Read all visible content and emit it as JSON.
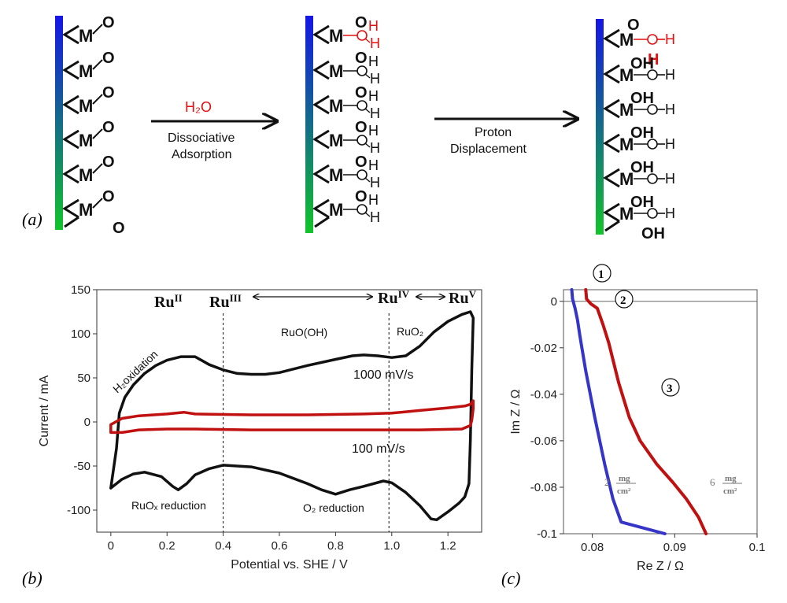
{
  "figure": {
    "panel_a_label": "(a)",
    "panel_b_label": "(b)",
    "panel_c_label": "(c)"
  },
  "panel_a": {
    "metal_label": "M",
    "oxygen_label": "O",
    "hydrogen_label": "H",
    "oh_label": "OH",
    "arrow1_reagent": "H₂O",
    "arrow1_line1": "Dissociative",
    "arrow1_line2": "Adsorption",
    "arrow2_line1": "Proton",
    "arrow2_line2": "Displacement",
    "colors": {
      "surface_top": "#1010e0",
      "surface_bottom": "#10c020",
      "highlight": "#e01010",
      "bond": "#111111"
    }
  },
  "chart_data": [
    {
      "id": "cv",
      "type": "line",
      "title": "",
      "xlabel": "Potential vs. SHE / V",
      "ylabel": "Current / mA",
      "xlim": [
        -0.05,
        1.32
      ],
      "ylim": [
        -125,
        150
      ],
      "xticks": [
        0,
        0.2,
        0.4,
        0.6,
        0.8,
        1.0,
        1.2
      ],
      "xtick_labels": [
        "0",
        "0.2",
        "0.4",
        "0.6",
        "0.8",
        "1.0",
        "1.2"
      ],
      "yticks": [
        -100,
        -50,
        0,
        50,
        100,
        150
      ],
      "ytick_labels": [
        "-100",
        "-50",
        "0",
        "50",
        "100",
        "150"
      ],
      "series": [
        {
          "name": "1000 mV/s",
          "color": "#111111",
          "points": [
            [
              0.0,
              -75
            ],
            [
              0.02,
              -30
            ],
            [
              0.03,
              10
            ],
            [
              0.05,
              28
            ],
            [
              0.08,
              42
            ],
            [
              0.12,
              55
            ],
            [
              0.16,
              64
            ],
            [
              0.2,
              70
            ],
            [
              0.25,
              74
            ],
            [
              0.3,
              74
            ],
            [
              0.35,
              65
            ],
            [
              0.4,
              59
            ],
            [
              0.45,
              55
            ],
            [
              0.5,
              54
            ],
            [
              0.55,
              54
            ],
            [
              0.6,
              56
            ],
            [
              0.7,
              64
            ],
            [
              0.8,
              71
            ],
            [
              0.86,
              75
            ],
            [
              0.9,
              76
            ],
            [
              0.95,
              75
            ],
            [
              1.0,
              73
            ],
            [
              1.05,
              75
            ],
            [
              1.1,
              86
            ],
            [
              1.15,
              102
            ],
            [
              1.2,
              114
            ],
            [
              1.25,
              122
            ],
            [
              1.28,
              125
            ],
            [
              1.29,
              118
            ],
            [
              1.285,
              60
            ],
            [
              1.28,
              -20
            ],
            [
              1.275,
              -70
            ],
            [
              1.26,
              -85
            ],
            [
              1.24,
              -92
            ],
            [
              1.2,
              -102
            ],
            [
              1.16,
              -111
            ],
            [
              1.14,
              -110
            ],
            [
              1.1,
              -95
            ],
            [
              1.05,
              -80
            ],
            [
              1.0,
              -69
            ],
            [
              0.97,
              -67
            ],
            [
              0.9,
              -73
            ],
            [
              0.85,
              -77
            ],
            [
              0.8,
              -82
            ],
            [
              0.75,
              -77
            ],
            [
              0.7,
              -70
            ],
            [
              0.6,
              -58
            ],
            [
              0.5,
              -51
            ],
            [
              0.4,
              -49
            ],
            [
              0.35,
              -53
            ],
            [
              0.3,
              -60
            ],
            [
              0.27,
              -70
            ],
            [
              0.24,
              -77
            ],
            [
              0.22,
              -73
            ],
            [
              0.18,
              -62
            ],
            [
              0.12,
              -57
            ],
            [
              0.08,
              -59
            ],
            [
              0.04,
              -65
            ],
            [
              0.0,
              -75
            ]
          ]
        },
        {
          "name": "100 mV/s",
          "color": "#c01010",
          "points": [
            [
              0.0,
              -12
            ],
            [
              0.0,
              -3
            ],
            [
              0.04,
              4
            ],
            [
              0.1,
              7
            ],
            [
              0.2,
              9
            ],
            [
              0.26,
              11
            ],
            [
              0.3,
              9
            ],
            [
              0.5,
              8
            ],
            [
              0.7,
              8
            ],
            [
              0.9,
              9
            ],
            [
              1.0,
              10
            ],
            [
              1.1,
              13
            ],
            [
              1.2,
              16
            ],
            [
              1.26,
              18
            ],
            [
              1.28,
              20
            ],
            [
              1.29,
              24
            ],
            [
              1.29,
              15
            ],
            [
              1.285,
              2
            ],
            [
              1.28,
              -4
            ],
            [
              1.25,
              -8
            ],
            [
              1.1,
              -9
            ],
            [
              0.9,
              -9
            ],
            [
              0.7,
              -9
            ],
            [
              0.5,
              -9
            ],
            [
              0.3,
              -8
            ],
            [
              0.2,
              -8
            ],
            [
              0.1,
              -9
            ],
            [
              0.04,
              -12
            ],
            [
              0.0,
              -12
            ]
          ]
        }
      ],
      "annotations": {
        "ru2": "Ru",
        "ru2_sup": "II",
        "ru3": "Ru",
        "ru3_sup": "III",
        "ru4": "Ru",
        "ru4_sup": "IV",
        "ru5": "Ru",
        "ru5_sup": "V",
        "h2_oxidation": "H₂oxidation",
        "ruooh": "RuO(OH)",
        "ruo2": "RuO₂",
        "scan_1000": "1000 mV/s",
        "scan_100": "100 mV/s",
        "ruox_reduction": "RuOₓ reduction",
        "o2_reduction": "O₂ reduction"
      },
      "vlines": [
        0.4,
        0.99
      ]
    },
    {
      "id": "eis",
      "type": "line",
      "title": "",
      "xlabel": "Re Z / Ω",
      "ylabel": "Im Z / Ω",
      "xlim": [
        0.0765,
        0.1
      ],
      "ylim": [
        -0.1,
        0.005
      ],
      "xticks": [
        0.08,
        0.09,
        0.1
      ],
      "xtick_labels": [
        "0.08",
        "0.09",
        "0.1"
      ],
      "yticks": [
        0,
        -0.02,
        -0.04,
        -0.06,
        -0.08,
        -0.1
      ],
      "ytick_labels": [
        "0",
        "-0.02",
        "-0.04",
        "-0.06",
        "-0.08",
        "-0.1"
      ],
      "series": [
        {
          "name": "2 mg/cm²",
          "color": "#3535c8",
          "points": [
            [
              0.0775,
              0.005
            ],
            [
              0.0776,
              0.001
            ],
            [
              0.0779,
              -0.003
            ],
            [
              0.0782,
              -0.008
            ],
            [
              0.0785,
              -0.015
            ],
            [
              0.0792,
              -0.03
            ],
            [
              0.0803,
              -0.05
            ],
            [
              0.0815,
              -0.07
            ],
            [
              0.0825,
              -0.085
            ],
            [
              0.0835,
              -0.095
            ],
            [
              0.0888,
              -0.1
            ]
          ]
        },
        {
          "name": "6 mg/cm²",
          "color": "#c01010",
          "points": [
            [
              0.0792,
              0.005
            ],
            [
              0.0793,
              0.001
            ],
            [
              0.0798,
              -0.001
            ],
            [
              0.0806,
              -0.003
            ],
            [
              0.0813,
              -0.01
            ],
            [
              0.082,
              -0.018
            ],
            [
              0.0832,
              -0.035
            ],
            [
              0.0845,
              -0.05
            ],
            [
              0.0858,
              -0.06
            ],
            [
              0.0878,
              -0.07
            ],
            [
              0.0898,
              -0.078
            ],
            [
              0.0914,
              -0.085
            ],
            [
              0.0929,
              -0.093
            ],
            [
              0.0938,
              -0.1
            ]
          ]
        }
      ],
      "annotations": {
        "marker1": "1",
        "marker2": "2",
        "marker3": "3",
        "label_2": "2",
        "label_6": "6",
        "unit_num": "mg",
        "unit_den": "cm²"
      }
    }
  ]
}
